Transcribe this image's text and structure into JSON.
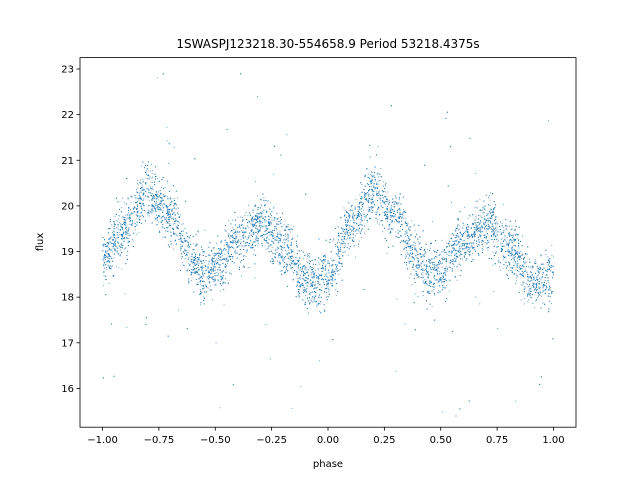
{
  "chart_data": {
    "type": "scatter",
    "title": "1SWASPJ123218.30-554658.9 Period 53218.4375s",
    "xlabel": "phase",
    "ylabel": "flux",
    "xlim": [
      -1.1,
      1.1
    ],
    "ylim": [
      15.15,
      23.25
    ],
    "xticks": [
      -1.0,
      -0.75,
      -0.5,
      -0.25,
      0.0,
      0.25,
      0.5,
      0.75,
      1.0
    ],
    "xtick_labels": [
      "−1.00",
      "−0.75",
      "−0.50",
      "−0.25",
      "0.00",
      "0.25",
      "0.50",
      "0.75",
      "1.00"
    ],
    "yticks": [
      16,
      17,
      18,
      19,
      20,
      21,
      22,
      23
    ],
    "ytick_labels": [
      "16",
      "17",
      "18",
      "19",
      "20",
      "21",
      "22",
      "23"
    ],
    "grid": false,
    "point_color": "#1f77b4",
    "series": [
      {
        "name": "",
        "description_points": "phase-folded light curve, each phase cycle repeated twice",
        "phase": [
          -1.0,
          -0.9,
          -0.8,
          -0.7,
          -0.6,
          -0.55,
          -0.5,
          -0.4,
          -0.3,
          -0.2,
          -0.1,
          -0.05,
          0.0,
          0.1,
          0.2,
          0.3,
          0.4,
          0.45,
          0.5,
          0.6,
          0.7,
          0.8,
          0.9,
          0.95,
          1.0
        ],
        "flux": [
          18.8,
          19.5,
          20.3,
          19.8,
          18.8,
          18.5,
          18.6,
          19.2,
          19.6,
          19.1,
          18.4,
          18.3,
          18.5,
          19.5,
          20.3,
          19.8,
          18.8,
          18.5,
          18.6,
          19.2,
          19.6,
          19.1,
          18.4,
          18.3,
          18.5
        ],
        "scatter_sigma": 0.3
      }
    ]
  }
}
